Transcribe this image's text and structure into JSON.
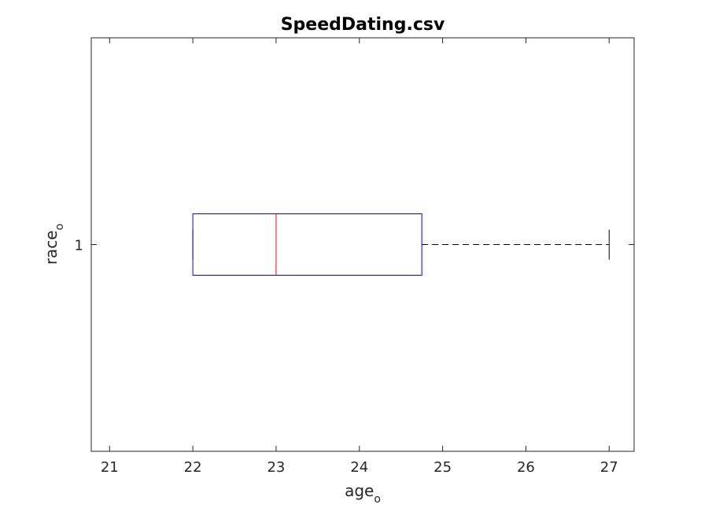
{
  "chart_data": {
    "type": "boxplot",
    "orientation": "horizontal",
    "title": "SpeedDating.csv",
    "xlabel": {
      "base": "age",
      "subscript": "o"
    },
    "ylabel": {
      "base": "race",
      "subscript": "o"
    },
    "xlim": [
      20.78,
      27.3
    ],
    "xticks": [
      21,
      22,
      23,
      24,
      25,
      26,
      27
    ],
    "categories": [
      "1"
    ],
    "boxes": [
      {
        "category": "1",
        "min": 22,
        "q1": 22,
        "median": 23,
        "q3": 24.75,
        "max": 27
      }
    ],
    "colors": {
      "box": "#0000ff",
      "median": "#ff0000",
      "whisker": "#000000",
      "axes": "#262626"
    },
    "grid": false
  }
}
